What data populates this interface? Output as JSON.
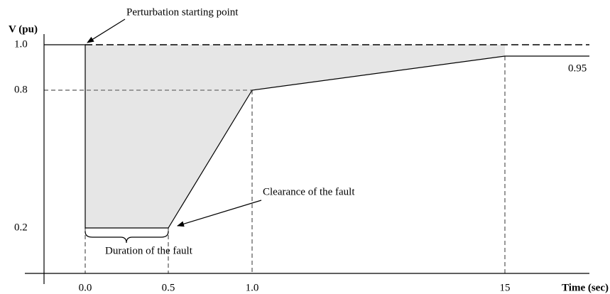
{
  "axes": {
    "y_label": "V (pu)",
    "x_label": "Time (sec)",
    "y_ticks": [
      "1.0",
      "0.8",
      "0.2"
    ],
    "x_ticks": [
      "0.0",
      "0.5",
      "1.0",
      "15"
    ]
  },
  "annotations": {
    "start": "Perturbation starting point",
    "clearance": "Clearance of the fault",
    "duration": "Duration of the fault",
    "final_level": "0.95"
  }
}
